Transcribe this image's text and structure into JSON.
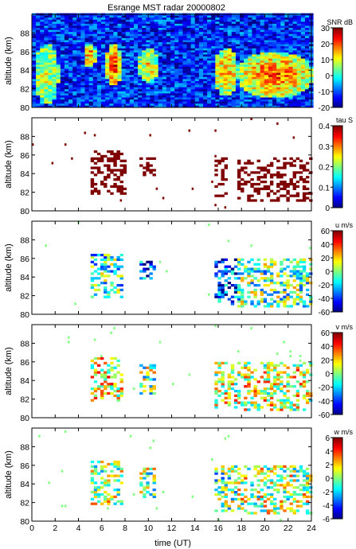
{
  "chart_data": {
    "title": "Esrange MST radar 20000802",
    "type": "heatmap",
    "xlabel": "time (UT)",
    "ylabel": "altitude (km)",
    "xlim": [
      0,
      24
    ],
    "ylim": [
      80,
      90
    ],
    "xticks": [
      "0",
      "2",
      "4",
      "6",
      "8",
      "10",
      "12",
      "14",
      "16",
      "18",
      "20",
      "22",
      "24"
    ],
    "yticks": [
      "80",
      "82",
      "84",
      "86",
      "88"
    ],
    "panels": [
      {
        "id": "snr",
        "colorbar_label": "SNR dB",
        "clim": [
          -20,
          30
        ],
        "colorbar_ticks": [
          "-20",
          "-10",
          "0",
          "10",
          "20",
          "30"
        ],
        "colormap": "jet",
        "features": [
          {
            "x": [
              0.1,
              2.1
            ],
            "y": [
              80.3,
              86.6
            ],
            "level_db": 10
          },
          {
            "x": [
              4.3,
              5.3
            ],
            "y": [
              84.2,
              86.8
            ],
            "level_db": 20
          },
          {
            "x": [
              6.2,
              7.5
            ],
            "y": [
              82.2,
              86.6
            ],
            "level_db": 27
          },
          {
            "x": [
              9.0,
              10.7
            ],
            "y": [
              82.6,
              86.2
            ],
            "level_db": 14
          },
          {
            "x": [
              15.5,
              17.5
            ],
            "y": [
              81.2,
              86.2
            ],
            "level_db": 18
          },
          {
            "x": [
              17.5,
              23.9
            ],
            "y": [
              81.0,
              85.8
            ],
            "level_db": 22
          }
        ]
      },
      {
        "id": "tau",
        "colorbar_label": "tau S",
        "clim": [
          0,
          0.4
        ],
        "colorbar_ticks": [
          "0",
          "0.1",
          "0.2",
          "0.3",
          "0.4"
        ],
        "colormap": "jet",
        "features": [
          {
            "x": [
              4.8,
              7.9
            ],
            "y": [
              81.6,
              86.4
            ],
            "level": 0.4
          },
          {
            "x": [
              9.2,
              10.5
            ],
            "y": [
              83.6,
              85.6
            ],
            "level": 0.4
          },
          {
            "x": [
              15.6,
              16.6
            ],
            "y": [
              81.4,
              85.6
            ],
            "level": 0.4
          },
          {
            "x": [
              17.5,
              23.9
            ],
            "y": [
              80.8,
              85.6
            ],
            "level": 0.4
          }
        ]
      },
      {
        "id": "u",
        "colorbar_label": "u m/s",
        "clim": [
          -60,
          60
        ],
        "colorbar_ticks": [
          "-60",
          "-40",
          "-20",
          "0",
          "20",
          "40",
          "60"
        ],
        "colormap": "jet",
        "features": [
          {
            "x": [
              4.8,
              7.8
            ],
            "y": [
              81.6,
              86.4
            ],
            "level": -10
          },
          {
            "x": [
              9.2,
              10.4
            ],
            "y": [
              83.6,
              85.6
            ],
            "level": -35
          },
          {
            "x": [
              15.6,
              17.5
            ],
            "y": [
              81.0,
              85.8
            ],
            "level": -40
          },
          {
            "x": [
              17.5,
              23.9
            ],
            "y": [
              80.6,
              85.8
            ],
            "level": -5
          }
        ]
      },
      {
        "id": "v",
        "colorbar_label": "v m/s",
        "clim": [
          -60,
          60
        ],
        "colorbar_ticks": [
          "-60",
          "-40",
          "-20",
          "0",
          "20",
          "40",
          "60"
        ],
        "colormap": "jet",
        "features": [
          {
            "x": [
              4.8,
              7.8
            ],
            "y": [
              81.6,
              86.4
            ],
            "level": 15
          },
          {
            "x": [
              9.2,
              10.4
            ],
            "y": [
              82.4,
              85.6
            ],
            "level": 0
          },
          {
            "x": [
              15.6,
              17.5
            ],
            "y": [
              80.8,
              85.8
            ],
            "level": 10
          },
          {
            "x": [
              17.5,
              23.9
            ],
            "y": [
              80.6,
              85.8
            ],
            "level": 10
          }
        ]
      },
      {
        "id": "w",
        "colorbar_label": "w m/s",
        "clim": [
          -6,
          6
        ],
        "colorbar_ticks": [
          "-6",
          "-4",
          "-2",
          "0",
          "2",
          "4",
          "6"
        ],
        "colormap": "jet",
        "features": [
          {
            "x": [
              4.8,
              7.8
            ],
            "y": [
              81.6,
              86.4
            ],
            "level": 0.5
          },
          {
            "x": [
              9.2,
              10.4
            ],
            "y": [
              82.4,
              85.6
            ],
            "level": 0
          },
          {
            "x": [
              15.6,
              17.5
            ],
            "y": [
              81.0,
              85.8
            ],
            "level": -0.5
          },
          {
            "x": [
              17.5,
              23.9
            ],
            "y": [
              80.6,
              85.8
            ],
            "level": 0.5
          }
        ]
      }
    ]
  }
}
